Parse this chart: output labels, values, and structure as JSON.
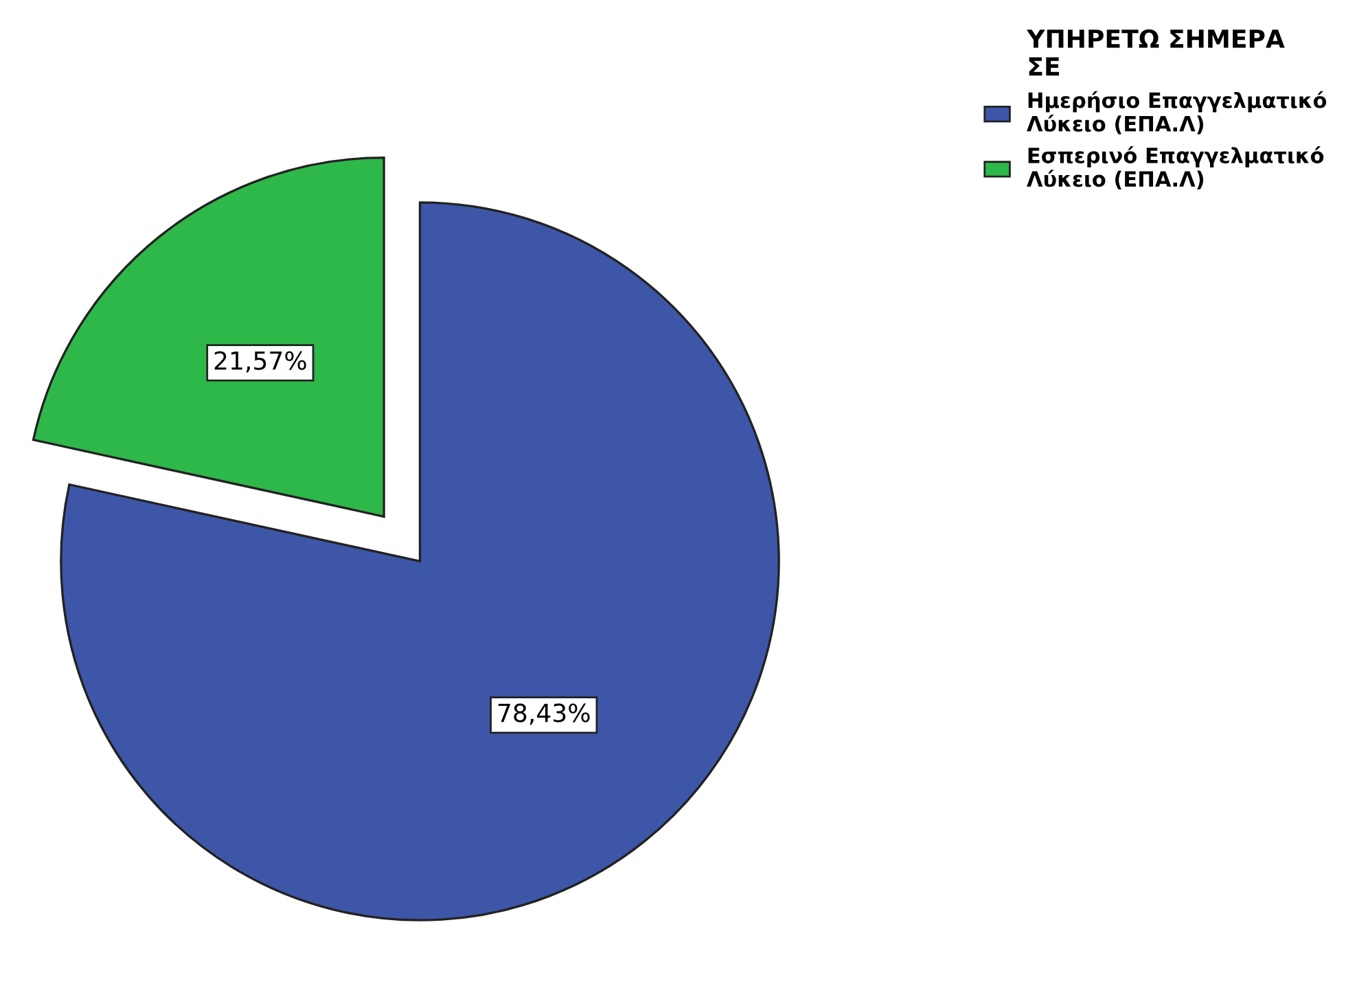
{
  "chart_data": {
    "type": "pie",
    "categories": [
      "Ημερήσιο Επαγγελματικό\nΛύκειο (ΕΠΑ.Λ)",
      "Εσπερινό Επαγγελματικό\nΛύκειο (ΕΠΑ.Λ)"
    ],
    "values": [
      78.43,
      21.57
    ],
    "colors": [
      "#3e56a8",
      "#2fb84a"
    ],
    "value_labels": [
      "78,43%",
      "21,57%"
    ],
    "legend_title": "ΥΠΗΡΕΤΩ ΣΗΜΕΡΑ\nΣΕ",
    "legend": "top right"
  }
}
